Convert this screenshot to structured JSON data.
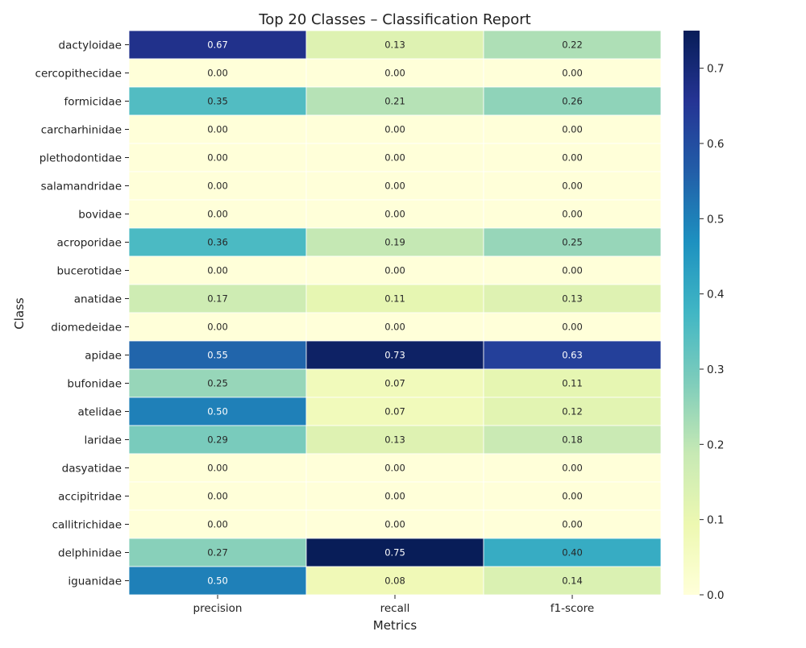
{
  "chart_data": {
    "type": "heatmap",
    "title": "Top 20 Classes – Classification Report",
    "xlabel": "Metrics",
    "ylabel": "Class",
    "columns": [
      "precision",
      "recall",
      "f1-score"
    ],
    "rows": [
      {
        "label": "dactyloidae",
        "values": [
          0.67,
          0.13,
          0.22
        ]
      },
      {
        "label": "cercopithecidae",
        "values": [
          0.0,
          0.0,
          0.0
        ]
      },
      {
        "label": "formicidae",
        "values": [
          0.35,
          0.21,
          0.26
        ]
      },
      {
        "label": "carcharhinidae",
        "values": [
          0.0,
          0.0,
          0.0
        ]
      },
      {
        "label": "plethodontidae",
        "values": [
          0.0,
          0.0,
          0.0
        ]
      },
      {
        "label": "salamandridae",
        "values": [
          0.0,
          0.0,
          0.0
        ]
      },
      {
        "label": "bovidae",
        "values": [
          0.0,
          0.0,
          0.0
        ]
      },
      {
        "label": "acroporidae",
        "values": [
          0.36,
          0.19,
          0.25
        ]
      },
      {
        "label": "bucerotidae",
        "values": [
          0.0,
          0.0,
          0.0
        ]
      },
      {
        "label": "anatidae",
        "values": [
          0.17,
          0.11,
          0.13
        ]
      },
      {
        "label": "diomedeidae",
        "values": [
          0.0,
          0.0,
          0.0
        ]
      },
      {
        "label": "apidae",
        "values": [
          0.55,
          0.73,
          0.63
        ]
      },
      {
        "label": "bufonidae",
        "values": [
          0.25,
          0.07,
          0.11
        ]
      },
      {
        "label": "atelidae",
        "values": [
          0.5,
          0.07,
          0.12
        ]
      },
      {
        "label": "laridae",
        "values": [
          0.29,
          0.13,
          0.18
        ]
      },
      {
        "label": "dasyatidae",
        "values": [
          0.0,
          0.0,
          0.0
        ]
      },
      {
        "label": "accipitridae",
        "values": [
          0.0,
          0.0,
          0.0
        ]
      },
      {
        "label": "callitrichidae",
        "values": [
          0.0,
          0.0,
          0.0
        ]
      },
      {
        "label": "delphinidae",
        "values": [
          0.27,
          0.75,
          0.4
        ]
      },
      {
        "label": "iguanidae",
        "values": [
          0.5,
          0.08,
          0.14
        ]
      }
    ],
    "colorbar": {
      "colormap": "YlGnBu",
      "vmin": 0.0,
      "vmax": 0.75,
      "ticks": [
        0.0,
        0.1,
        0.2,
        0.3,
        0.4,
        0.5,
        0.6,
        0.7
      ]
    },
    "value_format": "0.00",
    "grid": false
  }
}
